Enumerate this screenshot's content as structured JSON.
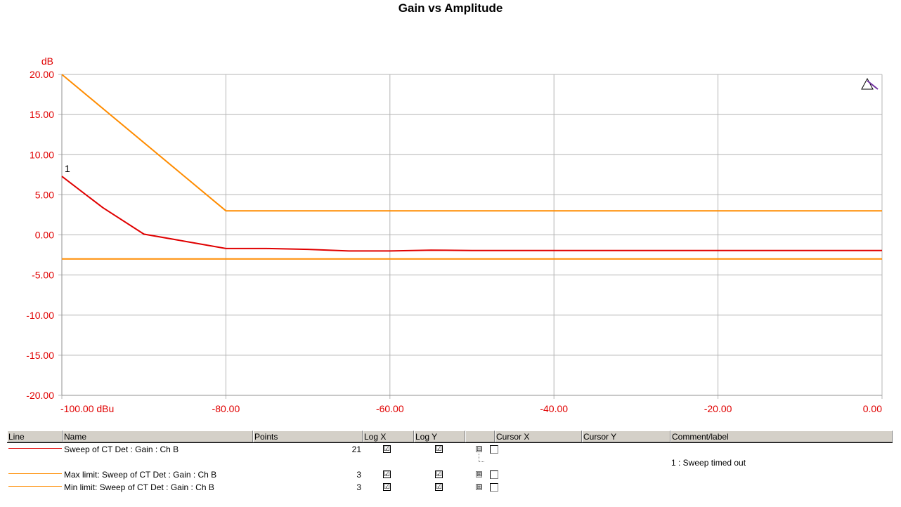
{
  "chart_data": {
    "type": "line",
    "title": "Gain vs Amplitude",
    "ylabel": "dB",
    "xlabel": "",
    "xlim": [
      -100,
      0
    ],
    "ylim": [
      -20,
      20
    ],
    "x_ticks": [
      "-100.00 dBu",
      "-80.00",
      "-60.00",
      "-40.00",
      "-20.00",
      "0.00"
    ],
    "y_ticks": [
      "20.00",
      "15.00",
      "10.00",
      "5.00",
      "0.00",
      "-5.00",
      "-10.00",
      "-15.00",
      "-20.00"
    ],
    "grid": true,
    "series": [
      {
        "name": "Sweep of CT Det  : Gain : Ch B",
        "color": "#e00000",
        "x": [
          -100,
          -95,
          -90,
          -85,
          -80,
          -75,
          -70,
          -65,
          -60,
          -55,
          -50,
          -45,
          -40,
          -35,
          -30,
          -25,
          -20,
          -15,
          -10,
          -5,
          0
        ],
        "y": [
          7.3,
          3.4,
          0.1,
          -0.8,
          -1.7,
          -1.7,
          -1.8,
          -2.0,
          -2.0,
          -1.9,
          -1.95,
          -1.95,
          -1.95,
          -1.95,
          -1.95,
          -1.95,
          -1.95,
          -1.95,
          -1.95,
          -1.95,
          -1.95
        ]
      },
      {
        "name": "Max limit: Sweep of CT Det  : Gain : Ch B",
        "color": "#ff8c00",
        "x": [
          -100,
          -80,
          0
        ],
        "y": [
          20,
          3,
          3
        ]
      },
      {
        "name": "Min limit: Sweep of CT Det  : Gain : Ch B",
        "color": "#ff8c00",
        "x": [
          -100,
          -80,
          0
        ],
        "y": [
          -3,
          -3,
          -3
        ]
      }
    ],
    "annotations": [
      {
        "text": "1",
        "x": -100,
        "y": 7.3
      }
    ]
  },
  "table": {
    "headers": [
      "Line",
      "Name",
      "Points",
      "Log X",
      "Log Y",
      "",
      "Cursor X",
      "Cursor Y",
      "Comment/label"
    ],
    "rows": [
      {
        "name": "Sweep of CT Det  : Gain : Ch B",
        "points": "21",
        "color": "#e00000",
        "expander": "⊟"
      },
      {
        "name": "Max limit: Sweep of CT Det  : Gain : Ch B",
        "points": "3",
        "color": "#ff8c00",
        "expander": "⊞"
      },
      {
        "name": "Min limit: Sweep of CT Det  : Gain : Ch B",
        "points": "3",
        "color": "#ff8c00",
        "expander": "⊞"
      }
    ],
    "comment": "1 : Sweep timed out",
    "check_mark": "☑"
  }
}
